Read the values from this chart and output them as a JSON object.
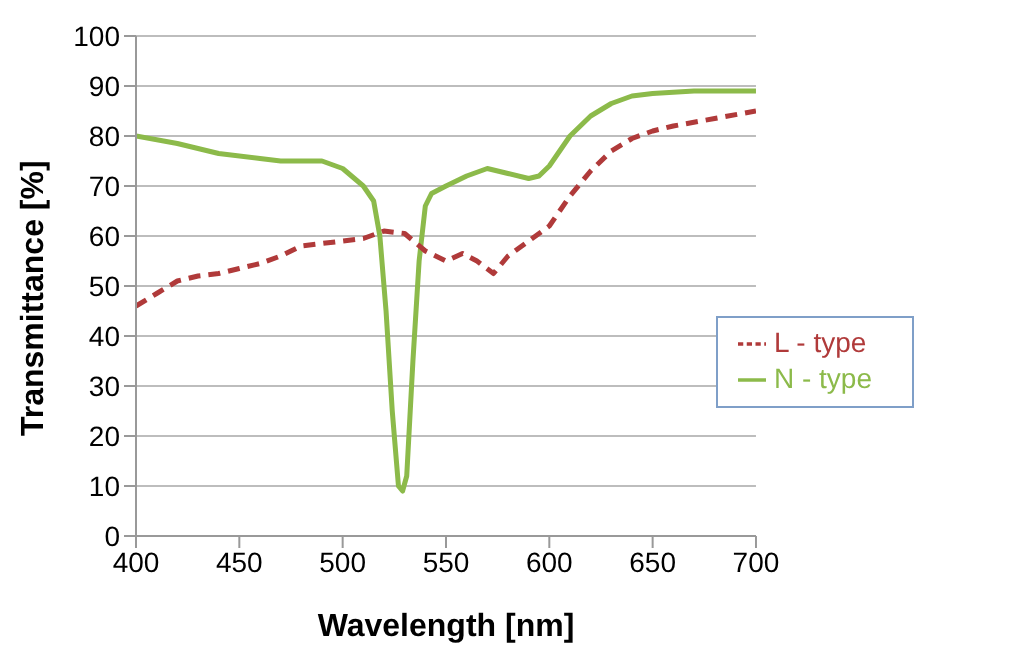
{
  "chart_data": {
    "type": "line",
    "xlabel": "Wavelength [nm]",
    "ylabel": "Transmittance [%]",
    "xlim": [
      400,
      700
    ],
    "xticks": [
      400,
      450,
      500,
      550,
      600,
      650,
      700
    ],
    "ylim": [
      0,
      100
    ],
    "yticks": [
      0,
      10,
      20,
      30,
      40,
      50,
      60,
      70,
      80,
      90,
      100
    ],
    "grid": "y",
    "legend": "right",
    "marker": "none",
    "series": [
      {
        "name": "N - type",
        "color": "#8cba4a",
        "line_style": "solid",
        "x": [
          400,
          420,
          440,
          460,
          470,
          480,
          490,
          500,
          510,
          515,
          518,
          521,
          524,
          527,
          529,
          531,
          534,
          537,
          540,
          543,
          550,
          560,
          570,
          580,
          590,
          595,
          600,
          610,
          620,
          630,
          640,
          650,
          670,
          700
        ],
        "values": [
          80,
          78.5,
          76.5,
          75.5,
          75,
          75,
          75,
          73.5,
          70,
          67,
          60,
          45,
          25,
          10,
          9,
          12,
          35,
          55,
          66,
          68.5,
          70,
          72,
          73.5,
          72.5,
          71.5,
          72,
          74,
          80,
          84,
          86.5,
          88,
          88.5,
          89,
          89
        ]
      },
      {
        "name": "L - type",
        "color": "#b03a3a",
        "line_style": "dashed",
        "x": [
          400,
          410,
          420,
          430,
          440,
          450,
          460,
          470,
          480,
          490,
          500,
          510,
          520,
          530,
          540,
          550,
          558,
          565,
          573,
          580,
          590,
          600,
          610,
          620,
          630,
          640,
          650,
          660,
          680,
          700
        ],
        "values": [
          46,
          48.5,
          51,
          52,
          52.5,
          53.5,
          54.5,
          56,
          58,
          58.5,
          59,
          59.5,
          61,
          60.5,
          57,
          55,
          56.5,
          55,
          52.5,
          56,
          59,
          62,
          68,
          73,
          77,
          79.5,
          81,
          82,
          83.5,
          85
        ]
      }
    ]
  }
}
